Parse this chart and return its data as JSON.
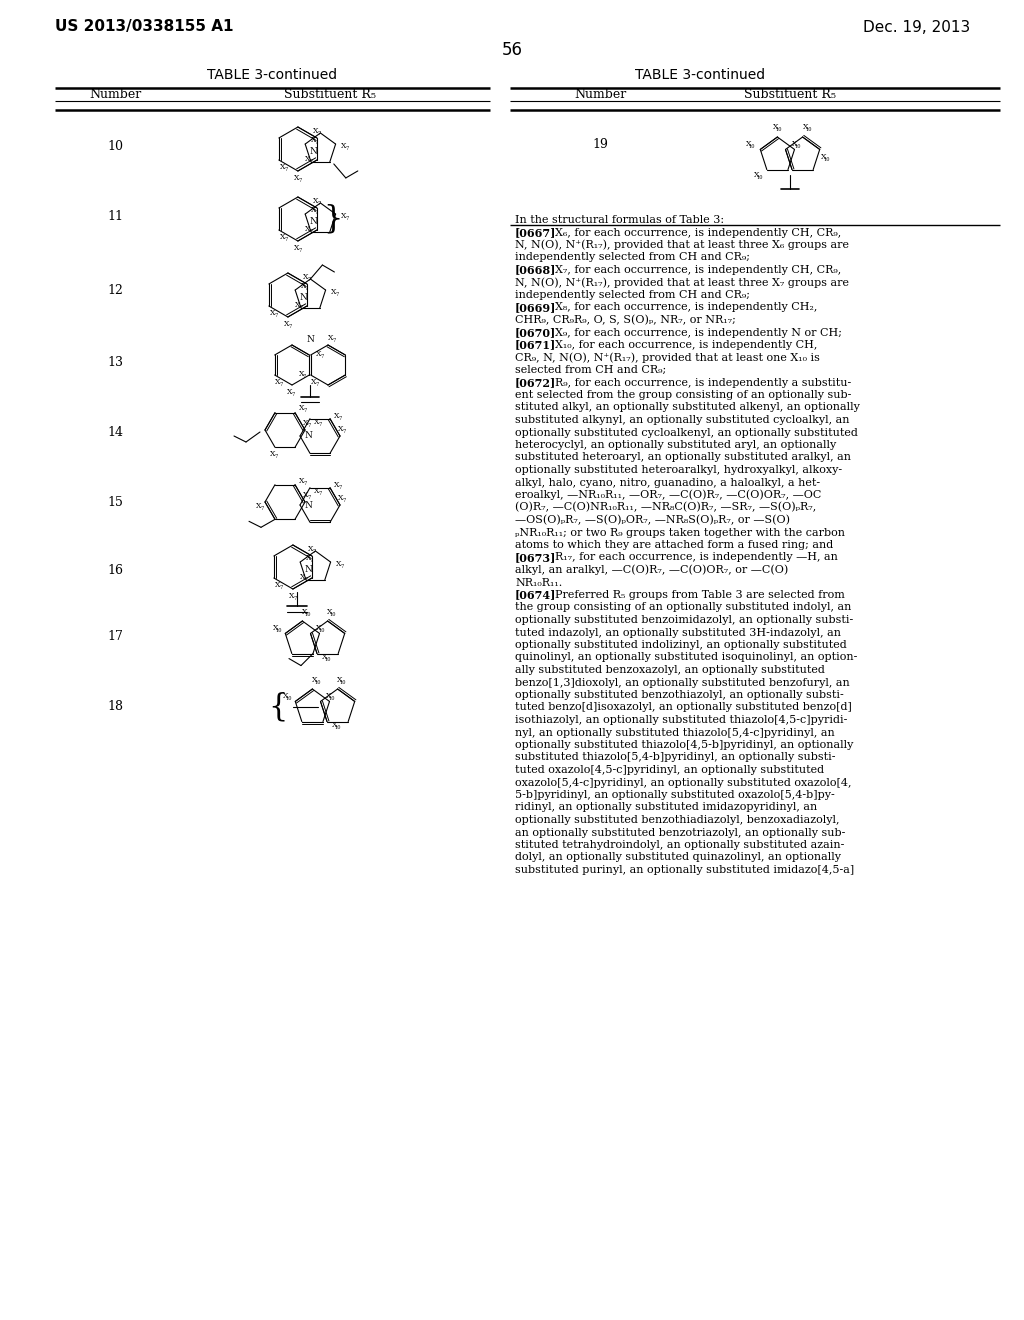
{
  "page_header_left": "US 2013/0338155 A1",
  "page_header_right": "Dec. 19, 2013",
  "page_number": "56",
  "table_title": "TABLE 3-continued",
  "col_header_number": "Number",
  "col_header_sub": "Substituent R₅",
  "background_color": "#ffffff",
  "right_text": [
    {
      "text": "In the structural formulas of Table 3:",
      "bold_prefix": ""
    },
    {
      "text": "X₆, for each occurrence, is independently CH, CR₉,",
      "bold_prefix": "[0667]"
    },
    {
      "text": "N, N(O), N⁺(R₁₇), provided that at least three X₆ groups are",
      "bold_prefix": ""
    },
    {
      "text": "independently selected from CH and CR₉;",
      "bold_prefix": ""
    },
    {
      "text": "X₇, for each occurrence, is independently CH, CR₉,",
      "bold_prefix": "[0668]"
    },
    {
      "text": "N, N(O), N⁺(R₁₇), provided that at least three X₇ groups are",
      "bold_prefix": ""
    },
    {
      "text": "independently selected from CH and CR₉;",
      "bold_prefix": ""
    },
    {
      "text": "X₈, for each occurrence, is independently CH₂,",
      "bold_prefix": "[0669]"
    },
    {
      "text": "CHR₉, CR₉R₉, O, S, S(O)ₚ, NR₇, or NR₁₇;",
      "bold_prefix": ""
    },
    {
      "text": "X₉, for each occurrence, is independently N or CH;",
      "bold_prefix": "[0670]"
    },
    {
      "text": "X₁₀, for each occurrence, is independently CH,",
      "bold_prefix": "[0671]"
    },
    {
      "text": "CR₉, N, N(O), N⁺(R₁₇), provided that at least one X₁₀ is",
      "bold_prefix": ""
    },
    {
      "text": "selected from CH and CR₉;",
      "bold_prefix": ""
    },
    {
      "text": "R₉, for each occurrence, is independently a substitu-",
      "bold_prefix": "[0672]"
    },
    {
      "text": "ent selected from the group consisting of an optionally sub-",
      "bold_prefix": ""
    },
    {
      "text": "stituted alkyl, an optionally substituted alkenyl, an optionally",
      "bold_prefix": ""
    },
    {
      "text": "substituted alkynyl, an optionally substituted cycloalkyl, an",
      "bold_prefix": ""
    },
    {
      "text": "optionally substituted cycloalkenyl, an optionally substituted",
      "bold_prefix": ""
    },
    {
      "text": "heterocyclyl, an optionally substituted aryl, an optionally",
      "bold_prefix": ""
    },
    {
      "text": "substituted heteroaryl, an optionally substituted aralkyl, an",
      "bold_prefix": ""
    },
    {
      "text": "optionally substituted heteroaralkyl, hydroxyalkyl, alkoxy-",
      "bold_prefix": ""
    },
    {
      "text": "alkyl, halo, cyano, nitro, guanadino, a haloalkyl, a het-",
      "bold_prefix": ""
    },
    {
      "text": "eroalkyl, —NR₁₀R₁₁, —OR₇, —C(O)R₇, —C(O)OR₇, —OC",
      "bold_prefix": ""
    },
    {
      "text": "(O)R₇, —C(O)NR₁₀R₁₁, —NR₈C(O)R₇, —SR₇, —S(O)ₚR₇,",
      "bold_prefix": ""
    },
    {
      "text": "—OS(O)ₚR₇, —S(O)ₚOR₇, —NR₈S(O)ₚR₇, or —S(O)",
      "bold_prefix": ""
    },
    {
      "text": "ₚNR₁₀R₁₁; or two R₉ groups taken together with the carbon",
      "bold_prefix": ""
    },
    {
      "text": "atoms to which they are attached form a fused ring; and",
      "bold_prefix": ""
    },
    {
      "text": "R₁₇, for each occurrence, is independently —H, an",
      "bold_prefix": "[0673]"
    },
    {
      "text": "alkyl, an aralkyl, —C(O)R₇, —C(O)OR₇, or —C(O)",
      "bold_prefix": ""
    },
    {
      "text": "NR₁₀R₁₁.",
      "bold_prefix": ""
    },
    {
      "text": "Preferred R₅ groups from Table 3 are selected from",
      "bold_prefix": "[0674]"
    },
    {
      "text": "the group consisting of an optionally substituted indolyl, an",
      "bold_prefix": ""
    },
    {
      "text": "optionally substituted benzoimidazolyl, an optionally substi-",
      "bold_prefix": ""
    },
    {
      "text": "tuted indazolyl, an optionally substituted 3H-indazolyl, an",
      "bold_prefix": ""
    },
    {
      "text": "optionally substituted indolizinyl, an optionally substituted",
      "bold_prefix": ""
    },
    {
      "text": "quinolinyl, an optionally substituted isoquinolinyl, an option-",
      "bold_prefix": ""
    },
    {
      "text": "ally substituted benzoxazolyl, an optionally substituted",
      "bold_prefix": ""
    },
    {
      "text": "benzo[1,3]dioxolyl, an optionally substituted benzofuryl, an",
      "bold_prefix": ""
    },
    {
      "text": "optionally substituted benzothiazolyl, an optionally substi-",
      "bold_prefix": ""
    },
    {
      "text": "tuted benzo[d]isoxazolyl, an optionally substituted benzo[d]",
      "bold_prefix": ""
    },
    {
      "text": "isothiazolyl, an optionally substituted thiazolo[4,5-c]pyridi-",
      "bold_prefix": ""
    },
    {
      "text": "nyl, an optionally substituted thiazolo[5,4-c]pyridinyl, an",
      "bold_prefix": ""
    },
    {
      "text": "optionally substituted thiazolo[4,5-b]pyridinyl, an optionally",
      "bold_prefix": ""
    },
    {
      "text": "substituted thiazolo[5,4-b]pyridinyl, an optionally substi-",
      "bold_prefix": ""
    },
    {
      "text": "tuted oxazolo[4,5-c]pyridinyl, an optionally substituted",
      "bold_prefix": ""
    },
    {
      "text": "oxazolo[5,4-c]pyridinyl, an optionally substituted oxazolo[4,",
      "bold_prefix": ""
    },
    {
      "text": "5-b]pyridinyl, an optionally substituted oxazolo[5,4-b]py-",
      "bold_prefix": ""
    },
    {
      "text": "ridinyl, an optionally substituted imidazopyridinyl, an",
      "bold_prefix": ""
    },
    {
      "text": "optionally substituted benzothiadiazolyl, benzoxadiazolyl,",
      "bold_prefix": ""
    },
    {
      "text": "an optionally substituted benzotriazolyl, an optionally sub-",
      "bold_prefix": ""
    },
    {
      "text": "stituted tetrahydroindolyl, an optionally substituted azain-",
      "bold_prefix": ""
    },
    {
      "text": "dolyl, an optionally substituted quinazolinyl, an optionally",
      "bold_prefix": ""
    },
    {
      "text": "substituted purinyl, an optionally substituted imidazo[4,5-a]",
      "bold_prefix": ""
    }
  ]
}
